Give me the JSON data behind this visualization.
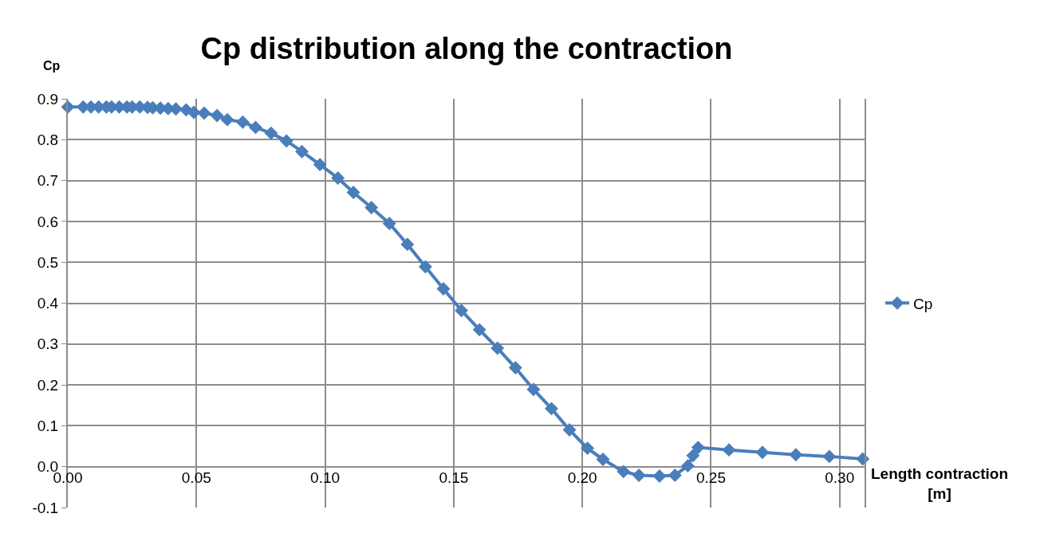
{
  "chart_data": {
    "type": "line",
    "title": "Cp distribution along the contraction",
    "xlabel": "Length contraction [m]",
    "ylabel": "Cp",
    "x": [
      0,
      0.006,
      0.009,
      0.012,
      0.015,
      0.017,
      0.02,
      0.023,
      0.025,
      0.028,
      0.031,
      0.033,
      0.036,
      0.039,
      0.042,
      0.046,
      0.049,
      0.053,
      0.058,
      0.062,
      0.068,
      0.073,
      0.079,
      0.085,
      0.091,
      0.098,
      0.105,
      0.111,
      0.118,
      0.125,
      0.132,
      0.139,
      0.146,
      0.153,
      0.16,
      0.167,
      0.174,
      0.181,
      0.188,
      0.195,
      0.202,
      0.208,
      0.216,
      0.222,
      0.23,
      0.236,
      0.241,
      0.243,
      0.245,
      0.257,
      0.27,
      0.283,
      0.296,
      0.309
    ],
    "series": [
      {
        "name": "Cp",
        "color": "#4a7ebb",
        "values": [
          0.88,
          0.88,
          0.88,
          0.88,
          0.88,
          0.88,
          0.88,
          0.88,
          0.88,
          0.88,
          0.879,
          0.878,
          0.877,
          0.876,
          0.875,
          0.873,
          0.867,
          0.865,
          0.859,
          0.849,
          0.843,
          0.83,
          0.816,
          0.797,
          0.771,
          0.739,
          0.706,
          0.671,
          0.634,
          0.595,
          0.544,
          0.489,
          0.435,
          0.382,
          0.335,
          0.29,
          0.242,
          0.189,
          0.142,
          0.09,
          0.045,
          0.018,
          -0.012,
          -0.021,
          -0.023,
          -0.021,
          0.002,
          0.027,
          0.047,
          0.041,
          0.035,
          0.029,
          0.025,
          0.019
        ]
      }
    ],
    "xlim": [
      0,
      0.31
    ],
    "xticks": [
      {
        "value": 0,
        "label": "0.00"
      },
      {
        "value": 0.05,
        "label": "0.05"
      },
      {
        "value": 0.1,
        "label": "0.10"
      },
      {
        "value": 0.15,
        "label": "0.15"
      },
      {
        "value": 0.2,
        "label": "0.20"
      },
      {
        "value": 0.25,
        "label": "0.25"
      },
      {
        "value": 0.3,
        "label": "0.30"
      }
    ],
    "ylim": [
      -0.1,
      0.9
    ],
    "yticks": [
      -0.1,
      {
        "value": 0,
        "label": "0.0"
      },
      0.1,
      0.2,
      0.3,
      0.4,
      0.5,
      0.6,
      0.7,
      0.8,
      0.9
    ],
    "grid": true,
    "legend": "right",
    "marker": "diamond",
    "line_style": "solid"
  }
}
